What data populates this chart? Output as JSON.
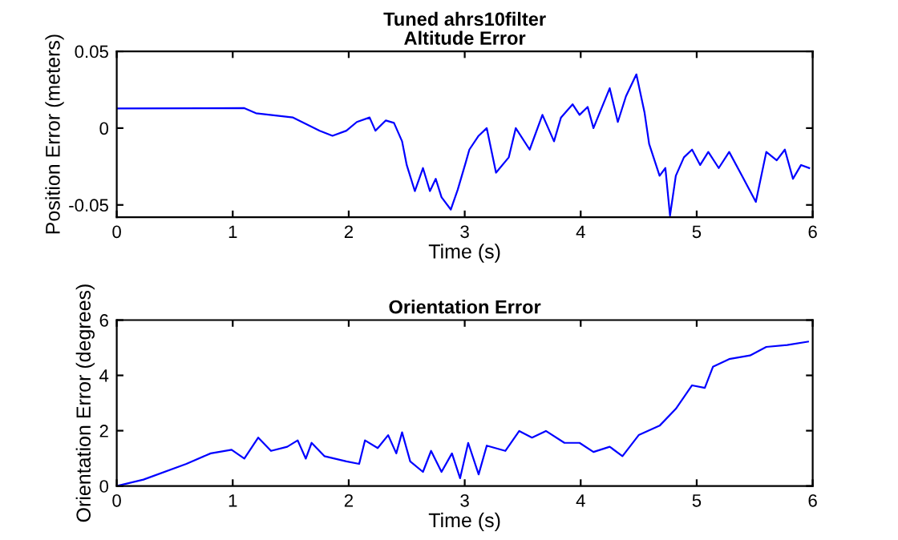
{
  "chart_data": [
    {
      "type": "line",
      "title": "Tuned ahrs10filter\nAltitude Error",
      "xlabel": "Time (s)",
      "ylabel": "Position Error (meters)",
      "x": [
        0,
        1.1,
        1.2,
        1.52,
        1.75,
        1.86,
        1.98,
        2.07,
        2.18,
        2.23,
        2.32,
        2.39,
        2.46,
        2.5,
        2.57,
        2.64,
        2.7,
        2.75,
        2.8,
        2.88,
        2.94,
        3.01,
        3.04,
        3.12,
        3.19,
        3.27,
        3.38,
        3.44,
        3.56,
        3.67,
        3.77,
        3.83,
        3.93,
        3.99,
        4.06,
        4.11,
        4.25,
        4.32,
        4.39,
        4.48,
        4.55,
        4.59,
        4.68,
        4.73,
        4.77,
        4.82,
        4.89,
        4.96,
        5.03,
        5.1,
        5.19,
        5.28,
        5.39,
        5.51,
        5.6,
        5.69,
        5.76,
        5.83,
        5.9,
        5.97
      ],
      "series": [
        {
          "color": "#0000ff",
          "values": [
            0.0128,
            0.013,
            0.0097,
            0.0069,
            -0.0017,
            -0.005,
            -0.0017,
            0.004,
            0.0069,
            -0.0017,
            0.005,
            0.0034,
            -0.0086,
            -0.024,
            -0.041,
            -0.026,
            -0.041,
            -0.033,
            -0.045,
            -0.053,
            -0.04,
            -0.022,
            -0.014,
            -0.005,
            0,
            -0.029,
            -0.019,
            0,
            -0.014,
            0.0086,
            -0.0086,
            0.0069,
            0.0155,
            0.0086,
            0.0138,
            0,
            0.026,
            0.004,
            0.0207,
            0.035,
            0.0103,
            -0.0103,
            -0.031,
            -0.026,
            -0.057,
            -0.031,
            -0.019,
            -0.014,
            -0.024,
            -0.0155,
            -0.026,
            -0.0155,
            -0.031,
            -0.048,
            -0.0155,
            -0.021,
            -0.014,
            -0.033,
            -0.024,
            -0.026
          ]
        }
      ],
      "xlim": [
        0,
        6
      ],
      "xticks": [
        0,
        1,
        2,
        3,
        4,
        5,
        6
      ],
      "ylim": [
        -0.058,
        0.05
      ],
      "yticks": [
        -0.05,
        0,
        0.05
      ],
      "grid": false,
      "legend": false
    },
    {
      "type": "line",
      "title": "Orientation Error",
      "xlabel": "Time (s)",
      "ylabel": "Orientation Error (degrees)",
      "x": [
        0,
        0.23,
        0.6,
        0.81,
        0.99,
        1.1,
        1.22,
        1.33,
        1.47,
        1.56,
        1.63,
        1.68,
        1.79,
        1.98,
        2.09,
        2.14,
        2.25,
        2.34,
        2.41,
        2.46,
        2.53,
        2.64,
        2.71,
        2.8,
        2.89,
        2.96,
        3.03,
        3.12,
        3.19,
        3.35,
        3.47,
        3.58,
        3.7,
        3.86,
        3.99,
        4.11,
        4.25,
        4.36,
        4.5,
        4.68,
        4.82,
        4.96,
        5.07,
        5.14,
        5.28,
        5.46,
        5.6,
        5.78,
        5.96
      ],
      "series": [
        {
          "color": "#0000ff",
          "values": [
            0,
            0.23,
            0.8,
            1.18,
            1.31,
            0.99,
            1.75,
            1.27,
            1.42,
            1.65,
            0.99,
            1.56,
            1.08,
            0.89,
            0.8,
            1.65,
            1.37,
            1.84,
            1.18,
            1.94,
            0.89,
            0.51,
            1.27,
            0.51,
            1.18,
            0.28,
            1.56,
            0.42,
            1.46,
            1.27,
            1.99,
            1.75,
            1.99,
            1.56,
            1.56,
            1.23,
            1.42,
            1.08,
            1.84,
            2.18,
            2.79,
            3.64,
            3.55,
            4.31,
            4.59,
            4.72,
            5.03,
            5.1,
            5.22
          ]
        }
      ],
      "xlim": [
        0,
        6
      ],
      "xticks": [
        0,
        1,
        2,
        3,
        4,
        5,
        6
      ],
      "ylim": [
        0,
        6
      ],
      "yticks": [
        0,
        2,
        4,
        6
      ],
      "grid": false,
      "legend": false
    }
  ]
}
